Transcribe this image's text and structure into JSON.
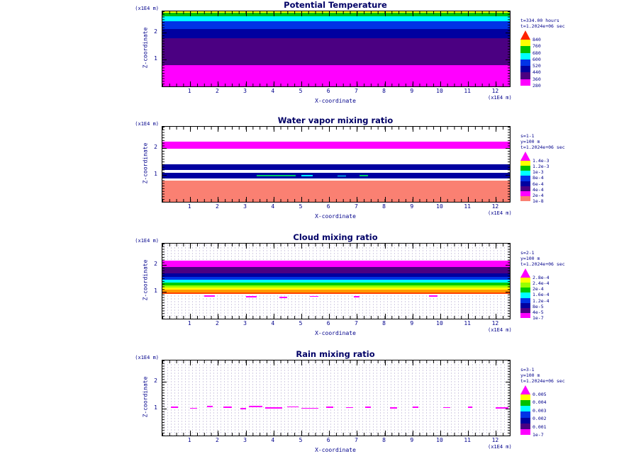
{
  "page": {
    "background": "#ffffff"
  },
  "chart_data": [
    {
      "type": "filled_contour",
      "title": "Potential Temperature",
      "xlabel": "X-coordinate",
      "x_unit": "(x1E4 m)",
      "ylabel": "Z-coordinate",
      "z_unit": "(x1E4 m)",
      "xlim": [
        0,
        12.5
      ],
      "ylim": [
        0,
        2.8
      ],
      "x_ticks": [
        "1",
        "2",
        "3",
        "4",
        "5",
        "6",
        "7",
        "8",
        "9",
        "10",
        "11",
        "12"
      ],
      "z_ticks": [
        "1",
        "2"
      ],
      "annotations": [
        "t=334.00 hours",
        "t=1.2024e+06 sec"
      ],
      "dots": false,
      "bands": [
        {
          "z_from": 2.76,
          "z_to": 2.8,
          "color": "#ffff00"
        },
        {
          "z_from": 2.62,
          "z_to": 2.76,
          "color": "#00c000"
        },
        {
          "z_from": 2.42,
          "z_to": 2.62,
          "color": "#00ffff"
        },
        {
          "z_from": 2.15,
          "z_to": 2.42,
          "color": "#0033e6"
        },
        {
          "z_from": 1.8,
          "z_to": 2.15,
          "color": "#0000a0"
        },
        {
          "z_from": 0.8,
          "z_to": 1.8,
          "color": "#4b0082"
        },
        {
          "z_from": 0.0,
          "z_to": 0.8,
          "color": "#ff00ff"
        }
      ],
      "segments": [],
      "colorbar": {
        "arrow_color": "#ff2200",
        "cells": [
          "#ffff00",
          "#00c000",
          "#00ffff",
          "#0033e6",
          "#0000a0",
          "#4b0082",
          "#ff00ff"
        ],
        "labels": [
          "840",
          "760",
          "680",
          "600",
          "520",
          "440",
          "360",
          "280"
        ]
      }
    },
    {
      "type": "filled_contour",
      "title": "Water vapor mixing ratio",
      "xlabel": "X-coordinate",
      "x_unit": "(x1E4 m)",
      "ylabel": "Z-coordinate",
      "z_unit": "(x1E4 m)",
      "xlim": [
        0,
        12.5
      ],
      "ylim": [
        0,
        2.8
      ],
      "x_ticks": [
        "1",
        "2",
        "3",
        "4",
        "5",
        "6",
        "7",
        "8",
        "9",
        "10",
        "11",
        "12"
      ],
      "z_ticks": [
        "1",
        "2"
      ],
      "annotations": [
        "s=1-1",
        "y=100 m",
        "t=1.2024e+06 sec"
      ],
      "dots": false,
      "bands": [
        {
          "z_from": 1.98,
          "z_to": 2.25,
          "color": "#ff00ff"
        },
        {
          "z_from": 1.2,
          "z_to": 1.4,
          "color": "#0000a0"
        },
        {
          "z_from": 0.87,
          "z_to": 1.08,
          "color": "#0000a0"
        },
        {
          "z_from": 0.0,
          "z_to": 0.79,
          "color": "#fa8072"
        }
      ],
      "segments": [
        {
          "x_from": 3.4,
          "x_to": 4.8,
          "z": 0.98,
          "color": "#00cc66"
        },
        {
          "x_from": 5.0,
          "x_to": 5.4,
          "z": 0.98,
          "color": "#00ffff"
        },
        {
          "x_from": 6.3,
          "x_to": 6.6,
          "z": 0.96,
          "color": "#00ffff"
        },
        {
          "x_from": 7.1,
          "x_to": 7.4,
          "z": 0.98,
          "color": "#00cc66"
        }
      ],
      "colorbar": {
        "arrow_color": "#ff00ff",
        "cells": [
          "#ffff00",
          "#00c000",
          "#00ffff",
          "#0033e6",
          "#0000a0",
          "#4b0082",
          "#ff00ff",
          "#fa8072"
        ],
        "labels": [
          "1.4e-3",
          "1.2e-3",
          "1e-3",
          "8e-4",
          "6e-4",
          "4e-4",
          "2e-4",
          "1e-8"
        ]
      }
    },
    {
      "type": "filled_contour",
      "title": "Cloud mixing ratio",
      "xlabel": "X-coordinate",
      "x_unit": "(x1E4 m)",
      "ylabel": "Z-coordinate",
      "z_unit": "(x1E4 m)",
      "xlim": [
        0,
        12.5
      ],
      "ylim": [
        0,
        2.8
      ],
      "x_ticks": [
        "1",
        "2",
        "3",
        "4",
        "5",
        "6",
        "7",
        "8",
        "9",
        "10",
        "11",
        "12"
      ],
      "z_ticks": [
        "1",
        "2"
      ],
      "annotations": [
        "s=2-1",
        "y=100 m",
        "t=1.2024e+06 sec"
      ],
      "dots": true,
      "bands": [
        {
          "z_from": 1.93,
          "z_to": 2.17,
          "color": "#ff00ff"
        },
        {
          "z_from": 1.68,
          "z_to": 1.93,
          "color": "#4b0082"
        },
        {
          "z_from": 1.56,
          "z_to": 1.68,
          "color": "#0000a0"
        },
        {
          "z_from": 1.45,
          "z_to": 1.56,
          "color": "#0033e6"
        },
        {
          "z_from": 1.35,
          "z_to": 1.45,
          "color": "#00ffff"
        },
        {
          "z_from": 1.24,
          "z_to": 1.35,
          "color": "#00cc00"
        },
        {
          "z_from": 1.16,
          "z_to": 1.24,
          "color": "#99ff00"
        },
        {
          "z_from": 1.07,
          "z_to": 1.16,
          "color": "#ffff00"
        },
        {
          "z_from": 0.97,
          "z_to": 1.07,
          "color": "#ff9900"
        },
        {
          "z_from": 0.93,
          "z_to": 0.97,
          "color": "#ff4400"
        }
      ],
      "segments": [
        {
          "x_from": 1.5,
          "x_to": 1.9,
          "z": 0.84,
          "color": "#ff00ff"
        },
        {
          "x_from": 3.0,
          "x_to": 3.4,
          "z": 0.82,
          "color": "#ff00ff"
        },
        {
          "x_from": 4.2,
          "x_to": 4.5,
          "z": 0.8,
          "color": "#ff00ff"
        },
        {
          "x_from": 5.3,
          "x_to": 5.6,
          "z": 0.83,
          "color": "#ff00ff"
        },
        {
          "x_from": 6.9,
          "x_to": 7.1,
          "z": 0.82,
          "color": "#ff00ff"
        },
        {
          "x_from": 9.6,
          "x_to": 9.9,
          "z": 0.84,
          "color": "#ff00ff"
        }
      ],
      "colorbar": {
        "arrow_color": "#ff00ff",
        "cells": [
          "#ffff00",
          "#99ff00",
          "#00cc00",
          "#00ffff",
          "#0033e6",
          "#0000a0",
          "#4b0082",
          "#ff00ff"
        ],
        "labels": [
          "2.8e-4",
          "2.4e-4",
          "2e-4",
          "1.6e-4",
          "1.2e-4",
          "8e-5",
          "4e-5",
          "1e-7"
        ]
      }
    },
    {
      "type": "filled_contour",
      "title": "Rain mixing ratio",
      "xlabel": "X-coordinate",
      "x_unit": "(x1E4 m)",
      "ylabel": "Z-coordinate",
      "z_unit": "(x1E4 m)",
      "xlim": [
        0,
        12.5
      ],
      "ylim": [
        0,
        2.8
      ],
      "x_ticks": [
        "1",
        "2",
        "3",
        "4",
        "5",
        "6",
        "7",
        "8",
        "9",
        "10",
        "11",
        "12"
      ],
      "z_ticks": [
        "1",
        "2"
      ],
      "annotations": [
        "s=3-1",
        "y=100 m",
        "t=1.2024e+06 sec"
      ],
      "dots": true,
      "bands": [],
      "segments": [
        {
          "x_from": 0.3,
          "x_to": 0.55,
          "z": 1.05,
          "color": "#ff00ff"
        },
        {
          "x_from": 1.0,
          "x_to": 1.25,
          "z": 1.02,
          "color": "#ff00ff"
        },
        {
          "x_from": 1.6,
          "x_to": 1.8,
          "z": 1.08,
          "color": "#ff00ff"
        },
        {
          "x_from": 2.2,
          "x_to": 2.5,
          "z": 1.05,
          "color": "#ff00ff"
        },
        {
          "x_from": 2.8,
          "x_to": 3.0,
          "z": 1.0,
          "color": "#ff00ff"
        },
        {
          "x_from": 3.1,
          "x_to": 3.6,
          "z": 1.08,
          "color": "#ff00ff"
        },
        {
          "x_from": 3.7,
          "x_to": 4.3,
          "z": 1.03,
          "color": "#ff00ff"
        },
        {
          "x_from": 4.5,
          "x_to": 4.9,
          "z": 1.07,
          "color": "#ff00ff"
        },
        {
          "x_from": 5.0,
          "x_to": 5.6,
          "z": 1.02,
          "color": "#ff00ff"
        },
        {
          "x_from": 5.9,
          "x_to": 6.15,
          "z": 1.05,
          "color": "#ff00ff"
        },
        {
          "x_from": 6.6,
          "x_to": 6.85,
          "z": 1.04,
          "color": "#ff00ff"
        },
        {
          "x_from": 7.3,
          "x_to": 7.5,
          "z": 1.06,
          "color": "#ff00ff"
        },
        {
          "x_from": 8.2,
          "x_to": 8.45,
          "z": 1.03,
          "color": "#ff00ff"
        },
        {
          "x_from": 9.0,
          "x_to": 9.2,
          "z": 1.05,
          "color": "#ff00ff"
        },
        {
          "x_from": 10.1,
          "x_to": 10.35,
          "z": 1.04,
          "color": "#ff00ff"
        },
        {
          "x_from": 11.0,
          "x_to": 11.15,
          "z": 1.05,
          "color": "#ff00ff"
        },
        {
          "x_from": 12.0,
          "x_to": 12.45,
          "z": 1.03,
          "color": "#ff00ff"
        }
      ],
      "colorbar": {
        "arrow_color": "#ff00ff",
        "cells": [
          "#ffff00",
          "#00c000",
          "#00ffff",
          "#0033e6",
          "#0000a0",
          "#4b0082",
          "#ff00ff"
        ],
        "labels": [
          "0.005",
          "0.004",
          "0.003",
          "0.002",
          "0.001",
          "1e-7"
        ]
      }
    }
  ]
}
